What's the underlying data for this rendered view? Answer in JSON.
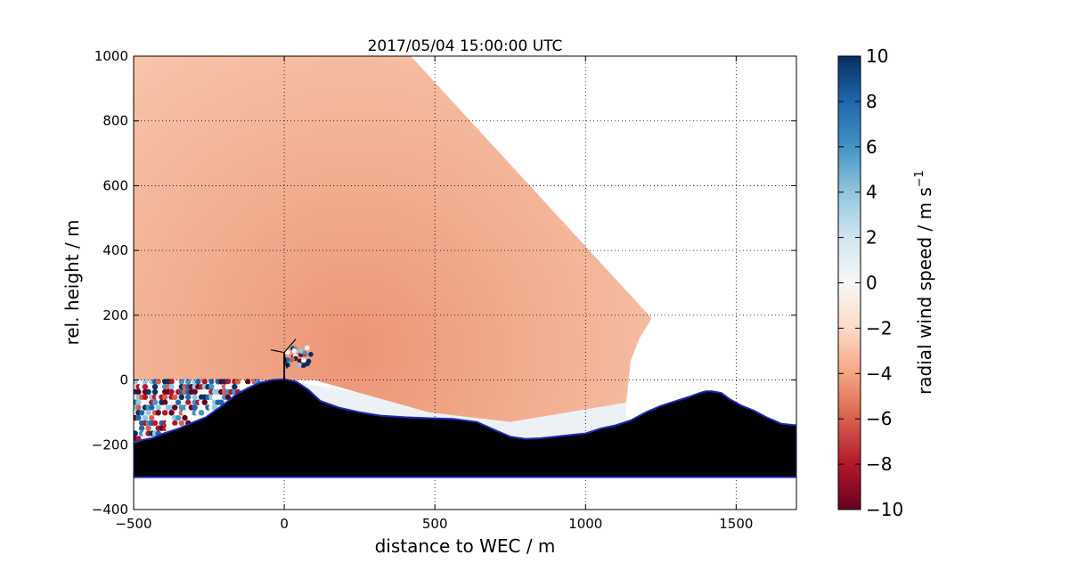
{
  "chart_data": {
    "type": "heatmap",
    "title": "2017/05/04 15:00:00 UTC",
    "xlabel": "distance to WEC / m",
    "ylabel": "rel. height / m",
    "xlim": [
      -500,
      1700
    ],
    "ylim": [
      -400,
      1000
    ],
    "xticks": [
      -500,
      0,
      500,
      1000,
      1500
    ],
    "yticks": [
      -400,
      -200,
      0,
      200,
      400,
      600,
      800,
      1000
    ],
    "xtick_labels": [
      "−500",
      "0",
      "500",
      "1000",
      "1500"
    ],
    "ytick_labels": [
      "−400",
      "−200",
      "0",
      "200",
      "400",
      "600",
      "800",
      "1000"
    ],
    "grid": true,
    "colorbar": {
      "label": "radial wind speed / m s⁻¹",
      "label_main": "radial wind speed / m s",
      "label_sup": "−1",
      "range": [
        -10,
        10
      ],
      "colormap": "RdBu",
      "ticks": [
        -10,
        -8,
        -6,
        -4,
        -2,
        0,
        2,
        4,
        6,
        8,
        10
      ],
      "tick_labels": [
        "−10",
        "−8",
        "−6",
        "−4",
        "−2",
        "0",
        "2",
        "4",
        "6",
        "8",
        "10"
      ]
    },
    "scan_sector": {
      "outer_boundary": [
        [
          -500,
          1000
        ],
        [
          420,
          1000
        ],
        [
          1220,
          190
        ],
        [
          1180,
          130
        ],
        [
          1150,
          60
        ],
        [
          1135,
          -70
        ],
        [
          750,
          -130
        ],
        [
          480,
          -100
        ],
        [
          250,
          -40
        ],
        [
          100,
          0
        ],
        [
          -500,
          0
        ]
      ],
      "typical_radial_wind": -3
    },
    "terrain_profile": {
      "x": [
        -500,
        -470,
        -440,
        -400,
        -350,
        -300,
        -260,
        -230,
        -200,
        -160,
        -120,
        -80,
        -40,
        0,
        40,
        80,
        120,
        180,
        250,
        320,
        400,
        480,
        560,
        640,
        700,
        750,
        800,
        850,
        900,
        950,
        1000,
        1050,
        1100,
        1150,
        1200,
        1250,
        1300,
        1350,
        1380,
        1400,
        1420,
        1450,
        1480,
        1520,
        1560,
        1600,
        1650,
        1700
      ],
      "y": [
        -195,
        -185,
        -180,
        -165,
        -150,
        -130,
        -115,
        -95,
        -75,
        -45,
        -25,
        -8,
        0,
        2,
        -5,
        -30,
        -65,
        -85,
        -100,
        -110,
        -115,
        -118,
        -120,
        -130,
        -155,
        -175,
        -182,
        -180,
        -175,
        -170,
        -165,
        -150,
        -140,
        -125,
        -100,
        -80,
        -65,
        -50,
        -40,
        -35,
        -35,
        -40,
        -60,
        -80,
        -95,
        -115,
        -135,
        -140
      ],
      "bottom": -300,
      "fill_color": "#000000",
      "edge_color": "#1a2ab8"
    },
    "turbine": {
      "x": 0,
      "hub_height": 85
    }
  }
}
